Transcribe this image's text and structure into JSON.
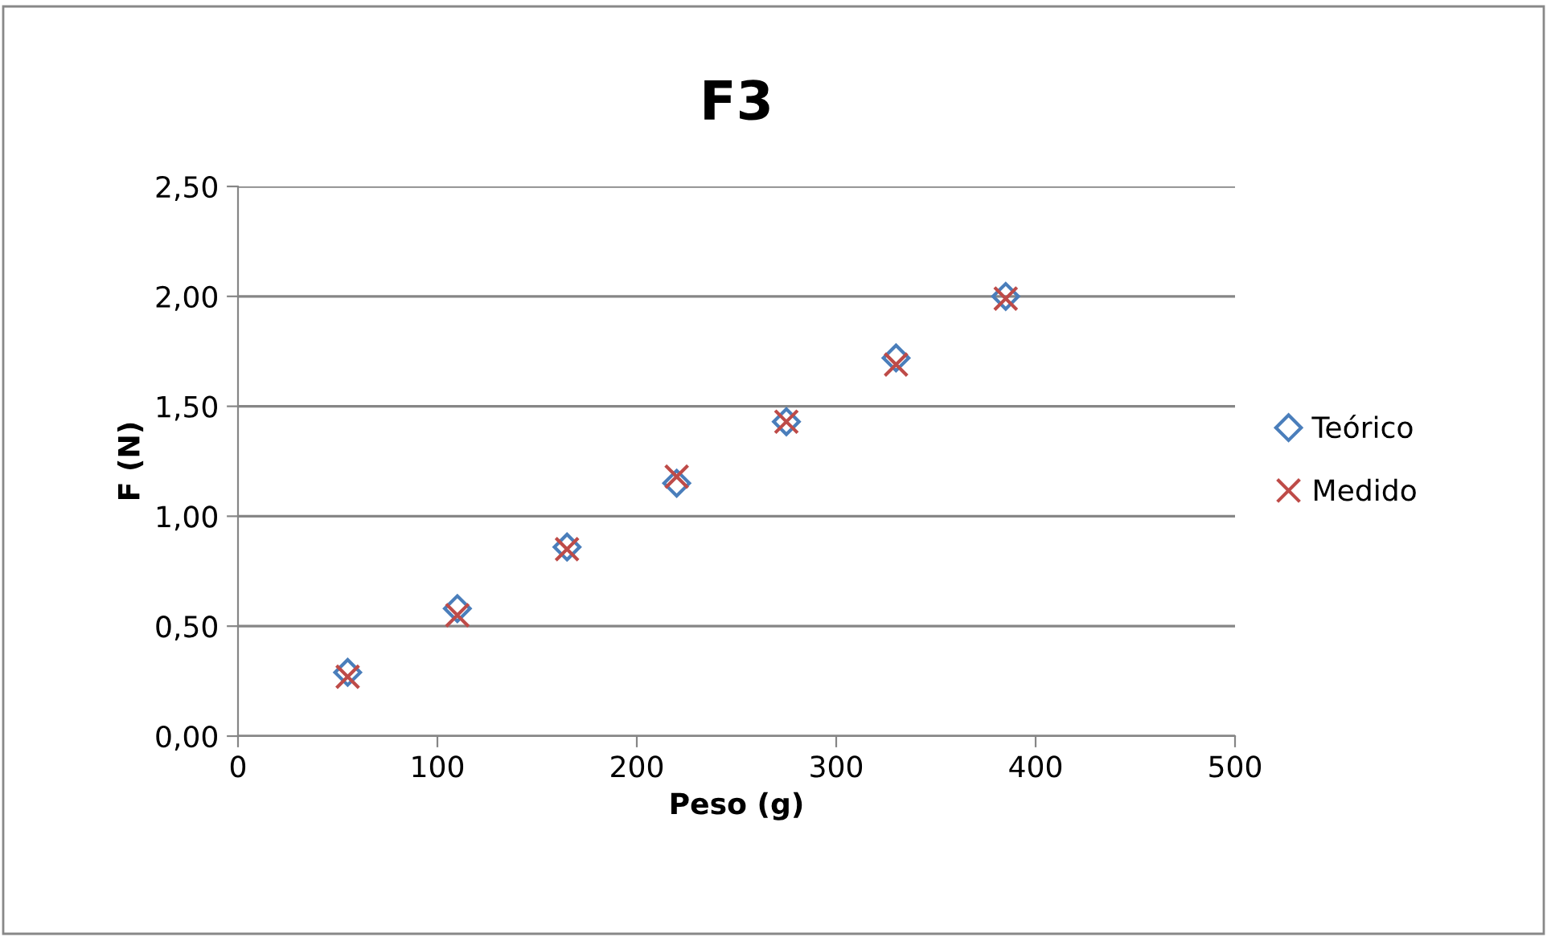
{
  "chart_data": {
    "type": "scatter",
    "title": "F3",
    "xlabel": "Peso (g)",
    "ylabel": "F (N)",
    "series": [
      {
        "name": "Teórico",
        "color": "#4a7ebb",
        "marker": "diamond",
        "x": [
          55,
          110,
          165,
          220,
          275,
          330,
          385
        ],
        "values": [
          0.29,
          0.58,
          0.86,
          1.15,
          1.43,
          1.72,
          2.0
        ]
      },
      {
        "name": "Medido",
        "color": "#be4b48",
        "marker": "cross",
        "x": [
          55,
          110,
          165,
          220,
          275,
          330,
          385
        ],
        "values": [
          0.27,
          0.55,
          0.85,
          1.18,
          1.43,
          1.69,
          1.99
        ]
      }
    ],
    "xlim": [
      0,
      500
    ],
    "xticks": [
      0,
      100,
      200,
      300,
      400,
      500
    ],
    "ylim": [
      0,
      2.5
    ],
    "yticks": [
      {
        "value": 0,
        "label": "0,00"
      },
      {
        "value": 0.5,
        "label": "0,50"
      },
      {
        "value": 1,
        "label": "1,00"
      },
      {
        "value": 1.5,
        "label": "1,50"
      },
      {
        "value": 2,
        "label": "2,00"
      },
      {
        "value": 2.5,
        "label": "2,50"
      }
    ],
    "grid": "y",
    "legend": "right"
  }
}
